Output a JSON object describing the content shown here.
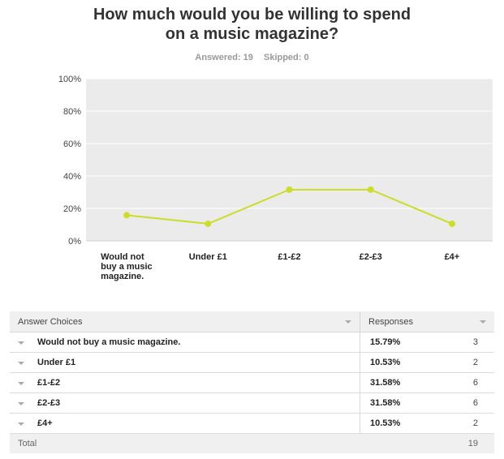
{
  "title_line1": "How much would you be willing to spend",
  "title_line2": "on a music magazine?",
  "answered": "Answered: 19",
  "skipped": "Skipped: 0",
  "chart_data": {
    "type": "line",
    "categories": [
      [
        "Would not",
        "buy a music",
        "magazine."
      ],
      [
        "Under £1"
      ],
      [
        "£1-£2"
      ],
      [
        "£2-£3"
      ],
      [
        "£4+"
      ]
    ],
    "values": [
      15.79,
      10.53,
      31.58,
      31.58,
      10.53
    ],
    "yticks": [
      "0%",
      "20%",
      "40%",
      "60%",
      "80%",
      "100%"
    ],
    "ylim": [
      0,
      100
    ],
    "grid": true,
    "line_color": "#cddc29",
    "plot_bg": "#ebebeb"
  },
  "table": {
    "header": {
      "choices": "Answer Choices",
      "responses": "Responses"
    },
    "rows": [
      {
        "choice": "Would not buy a music magazine.",
        "percent": "15.79%",
        "count": "3"
      },
      {
        "choice": "Under £1",
        "percent": "10.53%",
        "count": "2"
      },
      {
        "choice": "£1-£2",
        "percent": "31.58%",
        "count": "6"
      },
      {
        "choice": "£2-£3",
        "percent": "31.58%",
        "count": "6"
      },
      {
        "choice": "£4+",
        "percent": "10.53%",
        "count": "2"
      }
    ],
    "total_label": "Total",
    "total_count": "19"
  }
}
